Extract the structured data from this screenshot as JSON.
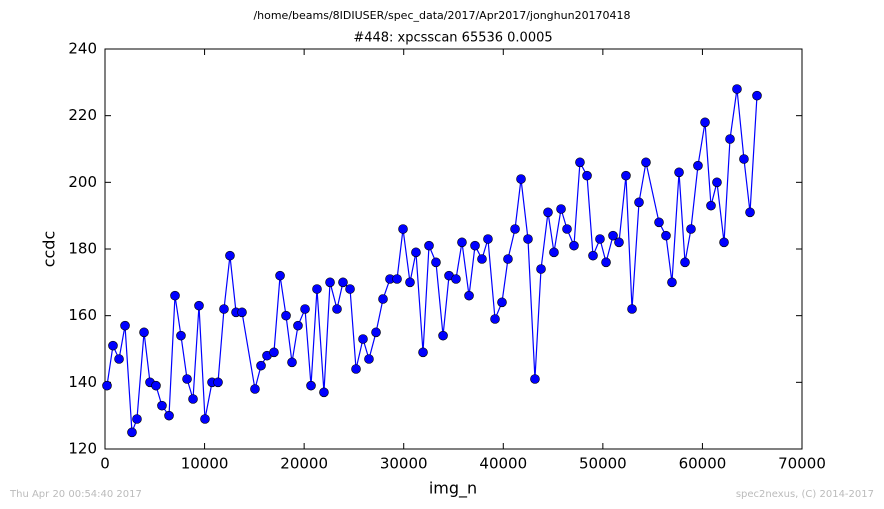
{
  "chart_data": {
    "type": "line",
    "suptitle": "/home/beams/8IDIUSER/spec_data/2017/Apr2017/jonghun20170418",
    "title": "#448: xpcsscan 65536 0.0005",
    "xlabel": "img_n",
    "ylabel": "ccdc",
    "footer_left": "Thu Apr 20 00:54:40 2017",
    "footer_right": "spec2nexus, (C) 2014-2017",
    "xlim": [
      0,
      70000
    ],
    "xticks": [
      0,
      10000,
      20000,
      30000,
      40000,
      50000,
      60000,
      70000
    ],
    "ylim": [
      120,
      240
    ],
    "yticks": [
      120,
      140,
      160,
      180,
      200,
      220,
      240
    ],
    "color": "#0000ff",
    "marker": "o",
    "x": [
      200,
      800,
      1410,
      2010,
      2710,
      3210,
      3920,
      4520,
      5120,
      5720,
      6430,
      7030,
      7630,
      8240,
      8840,
      9440,
      10040,
      10750,
      11350,
      11950,
      12550,
      13160,
      13760,
      15060,
      15670,
      16270,
      16970,
      17580,
      18180,
      18780,
      19380,
      20090,
      20690,
      21290,
      21990,
      22600,
      23300,
      23900,
      24610,
      25210,
      25910,
      26510,
      27220,
      27920,
      28620,
      29330,
      29930,
      30630,
      31230,
      31940,
      32540,
      33240,
      33950,
      34550,
      35250,
      35850,
      36560,
      37160,
      37860,
      38460,
      39170,
      39870,
      40470,
      41180,
      41780,
      42480,
      43180,
      43790,
      44490,
      45090,
      45800,
      46400,
      47100,
      47700,
      48410,
      49010,
      49710,
      50320,
      51020,
      51620,
      52320,
      52930,
      53630,
      54330,
      55640,
      56340,
      56940,
      57650,
      58250,
      58850,
      59550,
      60260,
      60860,
      61460,
      62170,
      62770,
      63470,
      64170,
      64780,
      65480
    ],
    "values": [
      139,
      151,
      147,
      157,
      125,
      129,
      155,
      140,
      139,
      133,
      130,
      166,
      154,
      141,
      135,
      163,
      129,
      140,
      140,
      162,
      178,
      161,
      161,
      138,
      145,
      148,
      149,
      172,
      160,
      146,
      157,
      162,
      139,
      168,
      137,
      170,
      162,
      170,
      168,
      144,
      153,
      147,
      155,
      165,
      171,
      171,
      186,
      170,
      179,
      149,
      181,
      176,
      154,
      172,
      171,
      182,
      166,
      181,
      177,
      183,
      159,
      164,
      177,
      186,
      201,
      183,
      141,
      174,
      191,
      179,
      192,
      186,
      181,
      206,
      202,
      178,
      183,
      176,
      184,
      182,
      202,
      162,
      194,
      206,
      188,
      184,
      170,
      203,
      176,
      186,
      205,
      218,
      193,
      200,
      182,
      213,
      228,
      207,
      191,
      226
    ]
  }
}
